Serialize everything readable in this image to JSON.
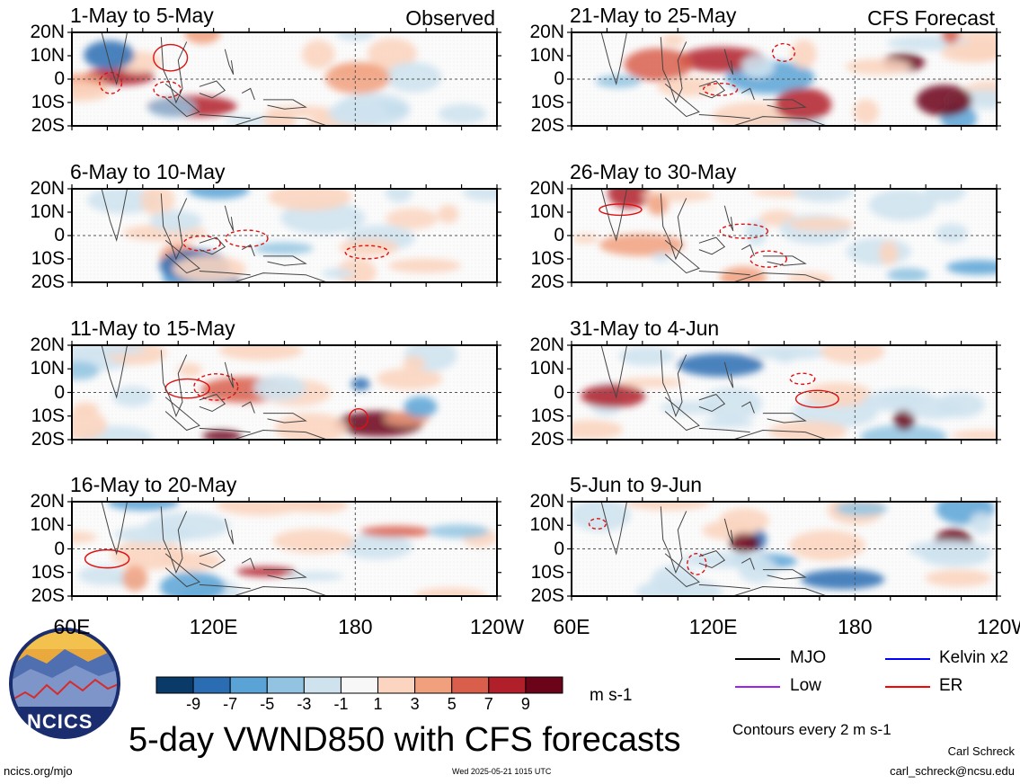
{
  "chart_data": [
    {
      "type": "heatmap",
      "title": "1-May to 5-May",
      "corner_label": "Observed",
      "variable": "VWND850",
      "ylim": [
        "20S",
        "20N"
      ],
      "xlim": [
        "60E",
        "120W"
      ]
    },
    {
      "type": "heatmap",
      "title": "6-May to 10-May",
      "corner_label": "",
      "variable": "VWND850",
      "ylim": [
        "20S",
        "20N"
      ],
      "xlim": [
        "60E",
        "120W"
      ]
    },
    {
      "type": "heatmap",
      "title": "11-May to 15-May",
      "corner_label": "",
      "variable": "VWND850",
      "ylim": [
        "20S",
        "20N"
      ],
      "xlim": [
        "60E",
        "120W"
      ]
    },
    {
      "type": "heatmap",
      "title": "16-May to 20-May",
      "corner_label": "",
      "variable": "VWND850",
      "ylim": [
        "20S",
        "20N"
      ],
      "xlim": [
        "60E",
        "120W"
      ]
    },
    {
      "type": "heatmap",
      "title": "21-May to 25-May",
      "corner_label": "CFS Forecast",
      "variable": "VWND850",
      "ylim": [
        "20S",
        "20N"
      ],
      "xlim": [
        "60E",
        "120W"
      ]
    },
    {
      "type": "heatmap",
      "title": "26-May to 30-May",
      "corner_label": "",
      "variable": "VWND850",
      "ylim": [
        "20S",
        "20N"
      ],
      "xlim": [
        "60E",
        "120W"
      ]
    },
    {
      "type": "heatmap",
      "title": "31-May to 4-Jun",
      "corner_label": "",
      "variable": "VWND850",
      "ylim": [
        "20S",
        "20N"
      ],
      "xlim": [
        "60E",
        "120W"
      ]
    },
    {
      "type": "heatmap",
      "title": "5-Jun to 9-Jun",
      "corner_label": "",
      "variable": "VWND850",
      "ylim": [
        "20S",
        "20N"
      ],
      "xlim": [
        "60E",
        "120W"
      ]
    }
  ],
  "axes": {
    "lat_ticks": [
      "20N",
      "10N",
      "0",
      "10S",
      "20S"
    ],
    "lon_ticks": [
      "60E",
      "120E",
      "180",
      "120W"
    ]
  },
  "colorbar": {
    "unit": "m s-1",
    "tick_labels": [
      "-9",
      "-7",
      "-5",
      "-3",
      "-1",
      "1",
      "3",
      "5",
      "7",
      "9"
    ],
    "colors": [
      "#0a3a68",
      "#2a6db3",
      "#5aa3d6",
      "#92c4e2",
      "#cfe3ef",
      "#f7f7f7",
      "#fbd5c0",
      "#f1a07e",
      "#d95f4c",
      "#b11f2b",
      "#6b0418"
    ]
  },
  "legend": {
    "items": [
      {
        "label": "MJO",
        "color": "#000000"
      },
      {
        "label": "Kelvin x2",
        "color": "#0000ff"
      },
      {
        "label": "Low",
        "color": "#a020f0"
      },
      {
        "label": "ER",
        "color": "#ff0000"
      }
    ],
    "contours_note": "Contours every 2 m s-1"
  },
  "footer": {
    "main_title": "5-day VWND850 with CFS forecasts",
    "logo_text": "NCICS",
    "url": "ncics.org/mjo",
    "timestamp": "Wed 2025-05-21 1015 UTC",
    "author": "Carl Schreck",
    "email": "carl_schreck@ncsu.edu"
  }
}
